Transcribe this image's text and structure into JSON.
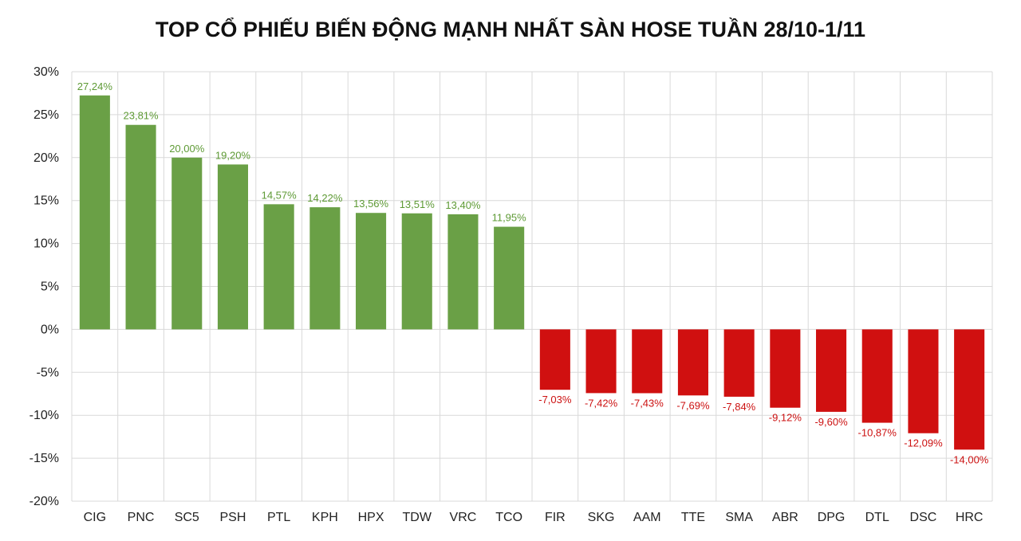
{
  "chart_data": {
    "type": "bar",
    "title": "TOP CỔ PHIẾU BIẾN ĐỘNG MẠNH NHẤT SÀN HOSE TUẦN 28/10-1/11",
    "xlabel": "",
    "ylabel": "",
    "ylim": [
      -20,
      30
    ],
    "yticks": [
      30,
      25,
      20,
      15,
      10,
      5,
      0,
      -5,
      -10,
      -15,
      -20
    ],
    "ytick_labels": [
      "30%",
      "25%",
      "20%",
      "15%",
      "10%",
      "5%",
      "0%",
      "-5%",
      "-10%",
      "-15%",
      "-20%"
    ],
    "grid": true,
    "legend": "none",
    "categories": [
      "CIG",
      "PNC",
      "SC5",
      "PSH",
      "PTL",
      "KPH",
      "HPX",
      "TDW",
      "VRC",
      "TCO",
      "FIR",
      "SKG",
      "AAM",
      "TTE",
      "SMA",
      "ABR",
      "DPG",
      "DTL",
      "DSC",
      "HRC"
    ],
    "values": [
      27.24,
      23.81,
      20.0,
      19.2,
      14.57,
      14.22,
      13.56,
      13.51,
      13.4,
      11.95,
      -7.03,
      -7.42,
      -7.43,
      -7.69,
      -7.84,
      -9.12,
      -9.6,
      -10.87,
      -12.09,
      -14.0
    ],
    "value_labels": [
      "27,24%",
      "23,81%",
      "20,00%",
      "19,20%",
      "14,57%",
      "14,22%",
      "13,56%",
      "13,51%",
      "13,40%",
      "11,95%",
      "-7,03%",
      "-7,42%",
      "-7,43%",
      "-7,69%",
      "-7,84%",
      "-9,12%",
      "-9,60%",
      "-10,87%",
      "-12,09%",
      "-14,00%"
    ],
    "colors": {
      "positive": "#6aa046",
      "negative": "#d01010",
      "positive_label": "#5e9a35",
      "negative_label": "#cc1111",
      "grid": "#d9d9d9"
    }
  }
}
